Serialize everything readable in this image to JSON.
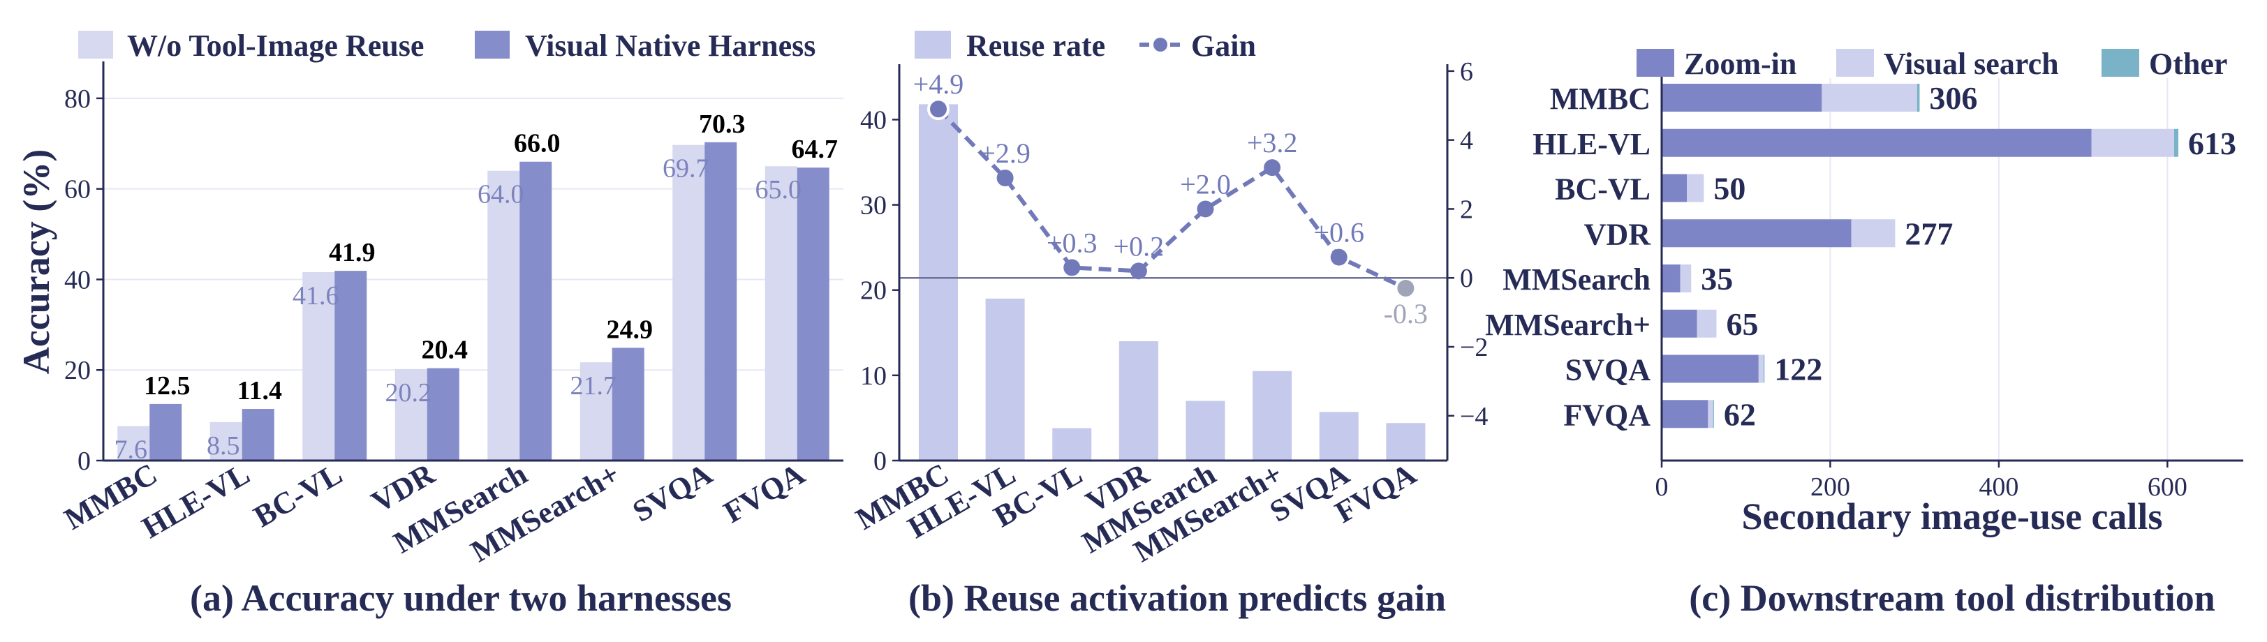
{
  "colors": {
    "light": "#d6d9ef",
    "dark": "#858dcb",
    "reuse": "#c5c9eb",
    "gain": "#7179b9",
    "gain_neg": "#a0a4b8",
    "zoom": "#7d85c6",
    "visual": "#cdd1ee",
    "other": "#7ab3c7",
    "text": "#262b56",
    "light_label": "#7b82bd"
  },
  "chart_data": [
    {
      "type": "bar",
      "caption": "(a) Accuracy under two harnesses",
      "ylabel": "Accuracy (%)",
      "xlabel": "",
      "ylim": [
        0,
        90
      ],
      "yticks": [
        0,
        20,
        40,
        60,
        80
      ],
      "grid": true,
      "legend": "top",
      "categories": [
        "MMBC",
        "HLE-VL",
        "BC-VL",
        "VDR",
        "MMSearch",
        "MMSearch+",
        "SVQA",
        "FVQA"
      ],
      "series": [
        {
          "name": "W/o Tool-Image Reuse",
          "values": [
            7.6,
            8.5,
            41.6,
            20.2,
            64.0,
            21.7,
            69.7,
            65.0
          ],
          "labels": [
            "7.6",
            "8.5",
            "41.6",
            "20.2",
            "64.0",
            "21.7",
            "69.7",
            "65.0"
          ]
        },
        {
          "name": "Visual Native Harness",
          "values": [
            12.5,
            11.4,
            41.9,
            20.4,
            66.0,
            24.9,
            70.3,
            64.7
          ],
          "labels": [
            "12.5",
            "11.4",
            "41.9",
            "20.4",
            "66.0",
            "24.9",
            "70.3",
            "64.7"
          ]
        }
      ]
    },
    {
      "type": "bar+line",
      "caption": "(b) Reuse activation predicts gain",
      "xlabel": "",
      "ylabel": "",
      "ylim_left": [
        0,
        46.5
      ],
      "yticks_left": [
        0,
        10,
        20,
        30,
        40
      ],
      "ylim_right": [
        -5.3,
        6.2
      ],
      "yticks_right": [
        -4,
        -2,
        0,
        2,
        4,
        6
      ],
      "ytick_labels_right": [
        "−4",
        "−2",
        "0",
        "2",
        "4",
        "6"
      ],
      "legend": "top",
      "categories": [
        "MMBC",
        "HLE-VL",
        "BC-VL",
        "VDR",
        "MMSearch",
        "MMSearch+",
        "SVQA",
        "FVQA"
      ],
      "bars": {
        "name": "Reuse rate",
        "values": [
          41.8,
          19.0,
          3.8,
          14.0,
          7.0,
          10.5,
          5.7,
          4.4
        ]
      },
      "line": {
        "name": "Gain",
        "values": [
          4.9,
          2.9,
          0.3,
          0.2,
          2.0,
          3.2,
          0.6,
          -0.3
        ],
        "labels": [
          "+4.9",
          "+2.9",
          "+0.3",
          "+0.2",
          "+2.0",
          "+3.2",
          "+0.6",
          "-0.3"
        ]
      },
      "zero_line": 0
    },
    {
      "type": "stacked-barh",
      "caption": "(c) Downstream tool distribution",
      "xlabel": "Secondary image-use calls",
      "ylabel": "",
      "xlim": [
        0,
        690
      ],
      "xticks": [
        0,
        200,
        400,
        600
      ],
      "grid": true,
      "legend": "top",
      "categories": [
        "MMBC",
        "HLE-VL",
        "BC-VL",
        "VDR",
        "MMSearch",
        "MMSearch+",
        "SVQA",
        "FVQA"
      ],
      "series": [
        {
          "name": "Zoom-in",
          "values": [
            190,
            510,
            30,
            225,
            22,
            42,
            115,
            55
          ]
        },
        {
          "name": "Visual search",
          "values": [
            113,
            98,
            20,
            52,
            13,
            23,
            6,
            6
          ]
        },
        {
          "name": "Other",
          "values": [
            3,
            5,
            0,
            0,
            0,
            0,
            1,
            1
          ]
        }
      ],
      "totals": [
        "306",
        "613",
        "50",
        "277",
        "35",
        "65",
        "122",
        "62"
      ]
    }
  ]
}
